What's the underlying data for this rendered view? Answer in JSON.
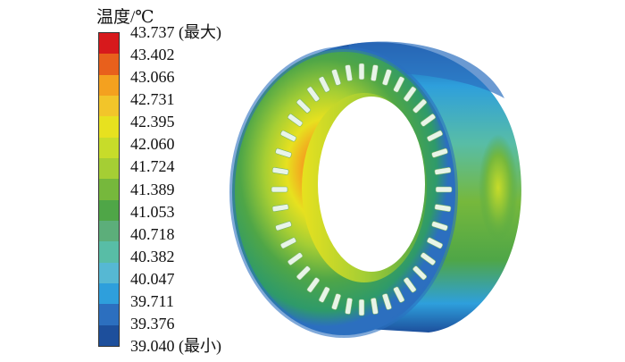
{
  "legend": {
    "title": "温度/℃",
    "labels": [
      "43.737 (最大)",
      "43.402",
      "43.066",
      "42.731",
      "42.395",
      "42.060",
      "41.724",
      "41.389",
      "41.053",
      "40.718",
      "40.382",
      "40.047",
      "39.711",
      "39.376",
      "39.040 (最小)"
    ],
    "colors": [
      "#d7191c",
      "#e8601c",
      "#f4a11f",
      "#f2c52a",
      "#e7e11f",
      "#c7dc2a",
      "#a5ce34",
      "#76b83c",
      "#4fa647",
      "#5cae7a",
      "#58bda6",
      "#56b8d3",
      "#2e9fdc",
      "#2c6fbf",
      "#1d4f9c"
    ]
  }
}
